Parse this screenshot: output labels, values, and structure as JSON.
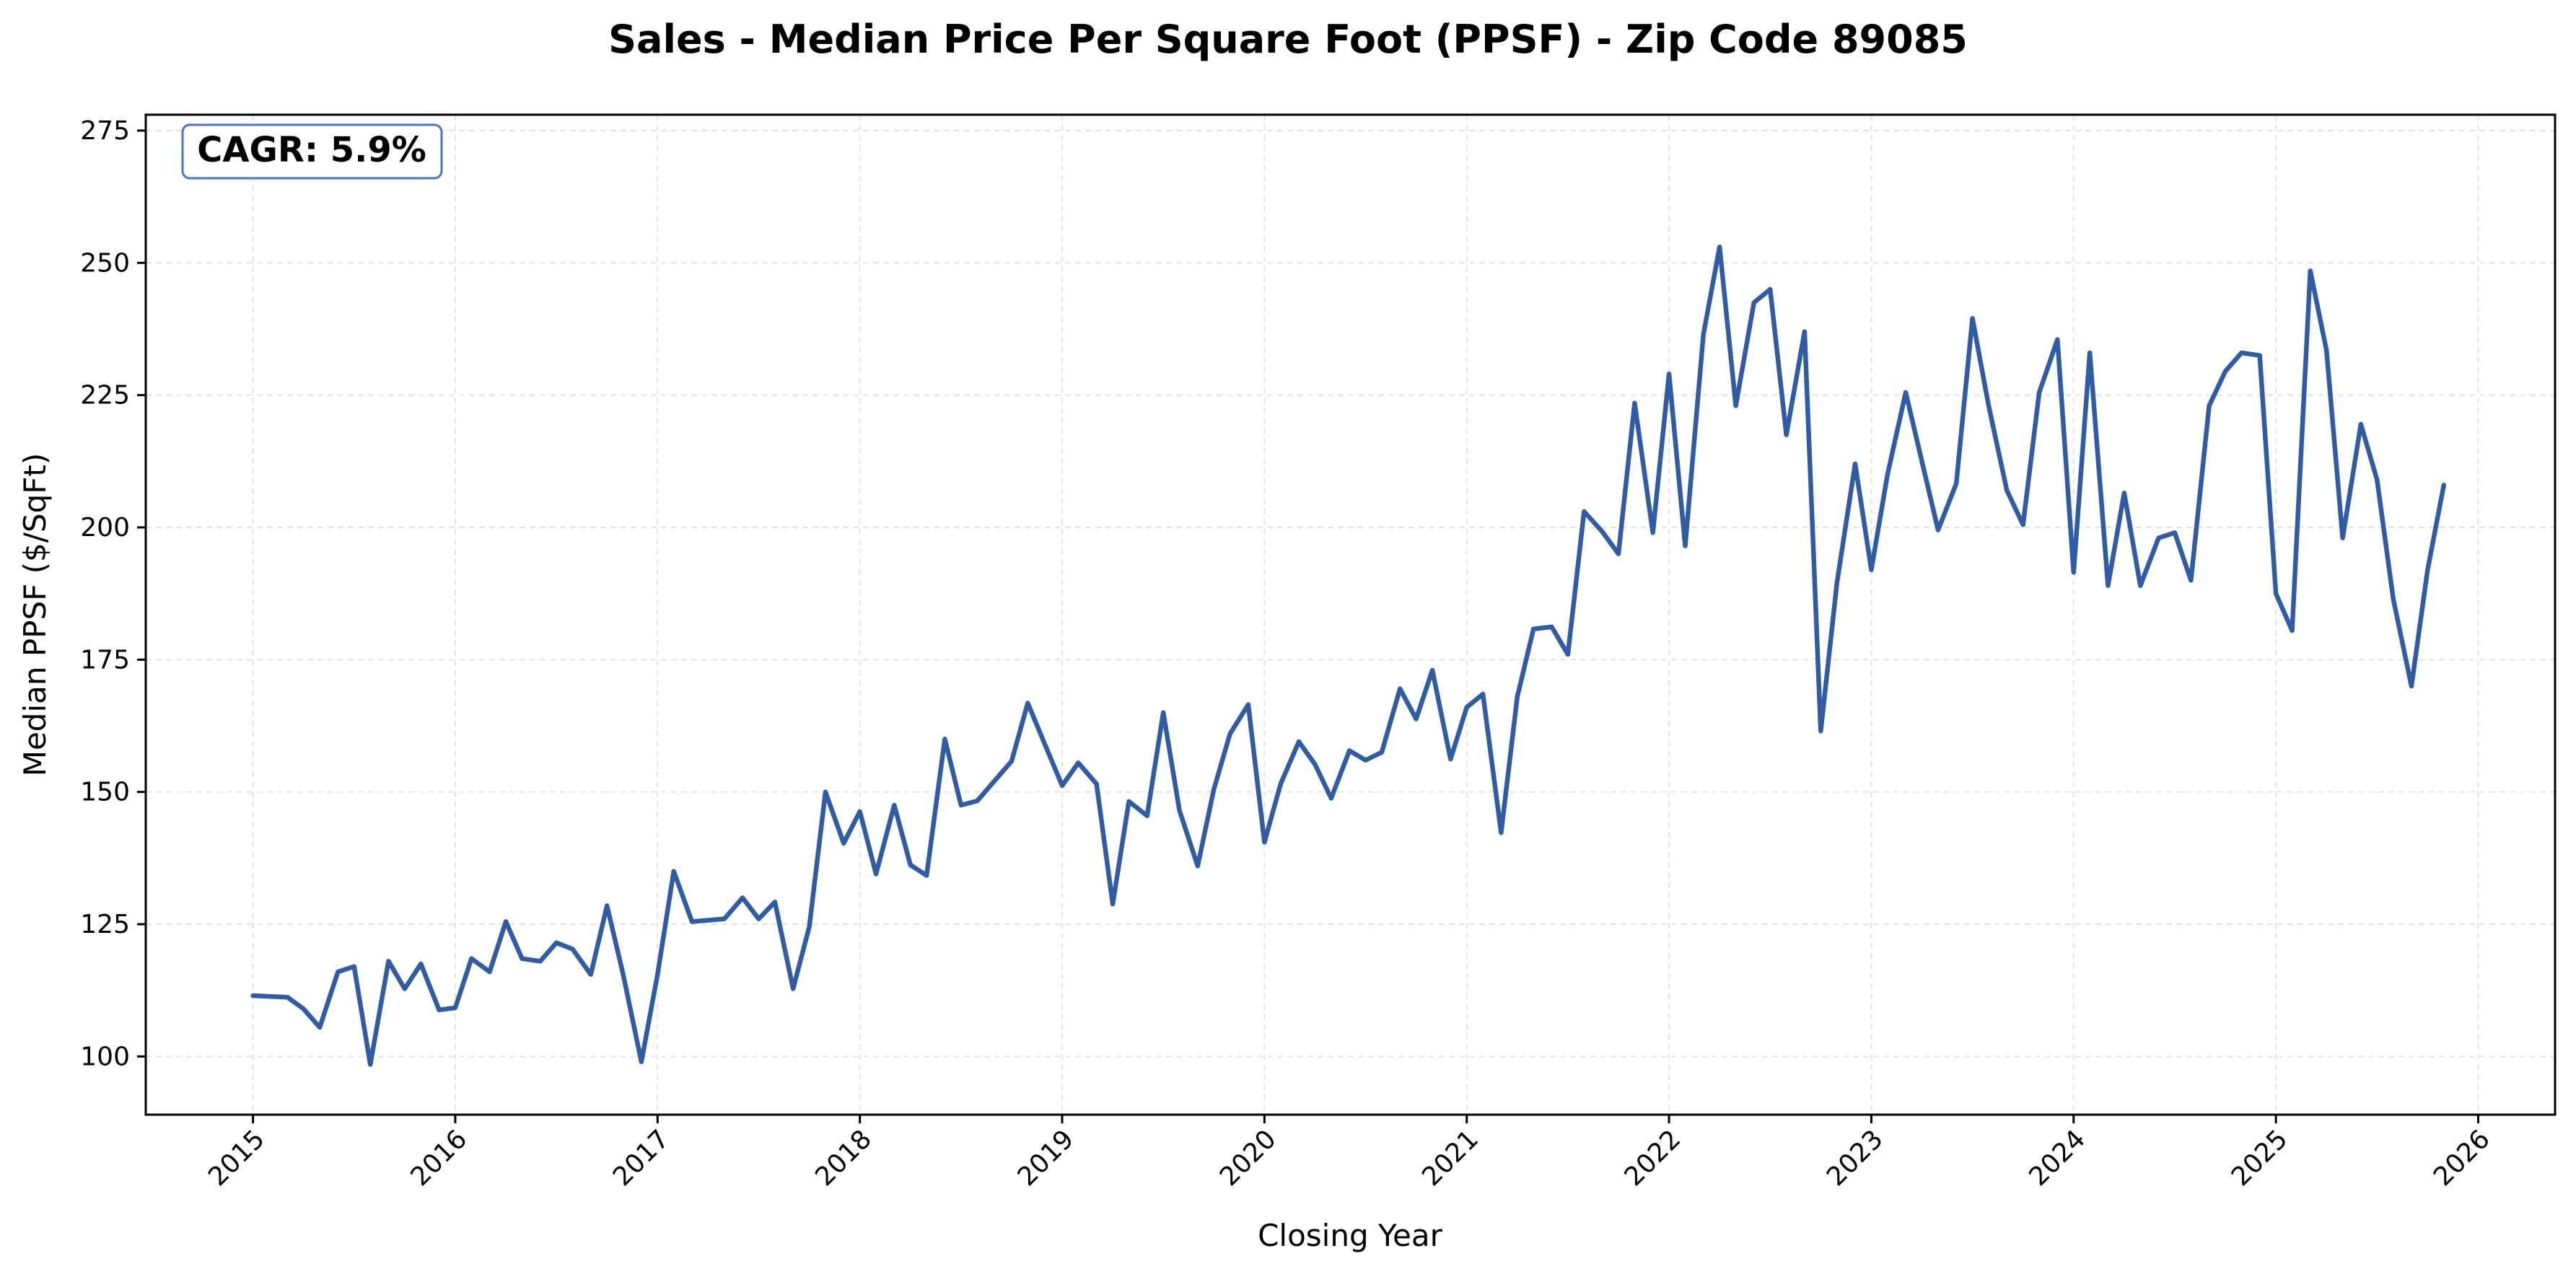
{
  "chart_data": {
    "type": "line",
    "title": "Sales - Median Price Per Square Foot (PPSF) - Zip Code 89085",
    "xlabel": "Closing Year",
    "ylabel": "Median PPSF ($/SqFt)",
    "xlim": [
      2014.47,
      2026.38
    ],
    "ylim": [
      89,
      278
    ],
    "x_ticks": [
      "2015",
      "2016",
      "2017",
      "2018",
      "2019",
      "2020",
      "2021",
      "2022",
      "2023",
      "2024",
      "2025",
      "2026"
    ],
    "y_ticks": [
      "100",
      "125",
      "150",
      "175",
      "200",
      "225",
      "250",
      "275"
    ],
    "grid": true,
    "annotation": "CAGR: 5.9%",
    "series": [
      {
        "name": "Median PPSF",
        "color": "#2f5ca5",
        "points": [
          [
            2015.0,
            111.5
          ],
          [
            2015.17,
            111.2
          ],
          [
            2015.25,
            109.0
          ],
          [
            2015.33,
            105.5
          ],
          [
            2015.42,
            116.0
          ],
          [
            2015.5,
            117.0
          ],
          [
            2015.58,
            98.5
          ],
          [
            2015.67,
            118.0
          ],
          [
            2015.75,
            112.8
          ],
          [
            2015.83,
            117.5
          ],
          [
            2015.92,
            108.8
          ],
          [
            2016.0,
            109.2
          ],
          [
            2016.08,
            118.5
          ],
          [
            2016.17,
            116.0
          ],
          [
            2016.25,
            125.5
          ],
          [
            2016.33,
            118.5
          ],
          [
            2016.42,
            118.0
          ],
          [
            2016.5,
            121.5
          ],
          [
            2016.58,
            120.3
          ],
          [
            2016.67,
            115.5
          ],
          [
            2016.75,
            128.5
          ],
          [
            2016.83,
            115.5
          ],
          [
            2016.92,
            99.0
          ],
          [
            2017.0,
            115.5
          ],
          [
            2017.08,
            135.0
          ],
          [
            2017.17,
            125.5
          ],
          [
            2017.33,
            126.0
          ],
          [
            2017.42,
            130.0
          ],
          [
            2017.5,
            126.0
          ],
          [
            2017.58,
            129.2
          ],
          [
            2017.67,
            112.8
          ],
          [
            2017.75,
            124.5
          ],
          [
            2017.83,
            150.0
          ],
          [
            2017.92,
            140.3
          ],
          [
            2018.0,
            146.3
          ],
          [
            2018.08,
            134.5
          ],
          [
            2018.17,
            147.5
          ],
          [
            2018.25,
            136.2
          ],
          [
            2018.33,
            134.2
          ],
          [
            2018.42,
            160.0
          ],
          [
            2018.5,
            147.5
          ],
          [
            2018.58,
            148.3
          ],
          [
            2018.75,
            155.8
          ],
          [
            2018.83,
            166.8
          ],
          [
            2018.92,
            158.5
          ],
          [
            2019.0,
            151.2
          ],
          [
            2019.08,
            155.5
          ],
          [
            2019.17,
            151.5
          ],
          [
            2019.25,
            128.8
          ],
          [
            2019.33,
            148.2
          ],
          [
            2019.42,
            145.5
          ],
          [
            2019.5,
            165.0
          ],
          [
            2019.58,
            146.5
          ],
          [
            2019.67,
            136.0
          ],
          [
            2019.75,
            150.5
          ],
          [
            2019.83,
            161.0
          ],
          [
            2019.92,
            166.5
          ],
          [
            2020.0,
            140.5
          ],
          [
            2020.08,
            151.5
          ],
          [
            2020.17,
            159.5
          ],
          [
            2020.25,
            155.2
          ],
          [
            2020.33,
            148.8
          ],
          [
            2020.42,
            157.8
          ],
          [
            2020.5,
            156.0
          ],
          [
            2020.58,
            157.5
          ],
          [
            2020.67,
            169.5
          ],
          [
            2020.75,
            163.8
          ],
          [
            2020.83,
            173.0
          ],
          [
            2020.92,
            156.2
          ],
          [
            2021.0,
            166.0
          ],
          [
            2021.08,
            168.5
          ],
          [
            2021.17,
            142.3
          ],
          [
            2021.25,
            168.0
          ],
          [
            2021.33,
            180.8
          ],
          [
            2021.42,
            181.2
          ],
          [
            2021.5,
            176.0
          ],
          [
            2021.58,
            203.0
          ],
          [
            2021.67,
            199.2
          ],
          [
            2021.75,
            195.0
          ],
          [
            2021.83,
            223.5
          ],
          [
            2021.92,
            199.0
          ],
          [
            2022.0,
            229.0
          ],
          [
            2022.08,
            196.5
          ],
          [
            2022.17,
            236.5
          ],
          [
            2022.25,
            253.0
          ],
          [
            2022.33,
            223.0
          ],
          [
            2022.42,
            242.5
          ],
          [
            2022.5,
            245.0
          ],
          [
            2022.58,
            217.5
          ],
          [
            2022.67,
            237.0
          ],
          [
            2022.75,
            161.5
          ],
          [
            2022.83,
            189.5
          ],
          [
            2022.92,
            212.0
          ],
          [
            2023.0,
            192.0
          ],
          [
            2023.08,
            210.0
          ],
          [
            2023.17,
            225.5
          ],
          [
            2023.25,
            212.5
          ],
          [
            2023.33,
            199.5
          ],
          [
            2023.42,
            208.3
          ],
          [
            2023.5,
            239.5
          ],
          [
            2023.58,
            223.0
          ],
          [
            2023.67,
            207.0
          ],
          [
            2023.75,
            200.5
          ],
          [
            2023.83,
            225.5
          ],
          [
            2023.92,
            235.5
          ],
          [
            2024.0,
            191.5
          ],
          [
            2024.08,
            233.0
          ],
          [
            2024.17,
            189.0
          ],
          [
            2024.25,
            206.5
          ],
          [
            2024.33,
            189.0
          ],
          [
            2024.42,
            198.0
          ],
          [
            2024.5,
            199.0
          ],
          [
            2024.58,
            190.0
          ],
          [
            2024.67,
            223.0
          ],
          [
            2024.75,
            229.5
          ],
          [
            2024.83,
            233.0
          ],
          [
            2024.92,
            232.5
          ],
          [
            2025.0,
            187.5
          ],
          [
            2025.08,
            180.5
          ],
          [
            2025.17,
            248.5
          ],
          [
            2025.25,
            233.5
          ],
          [
            2025.33,
            198.0
          ],
          [
            2025.42,
            219.5
          ],
          [
            2025.5,
            209.0
          ],
          [
            2025.58,
            186.5
          ],
          [
            2025.67,
            170.0
          ],
          [
            2025.75,
            192.0
          ],
          [
            2025.83,
            208.0
          ]
        ]
      }
    ]
  }
}
